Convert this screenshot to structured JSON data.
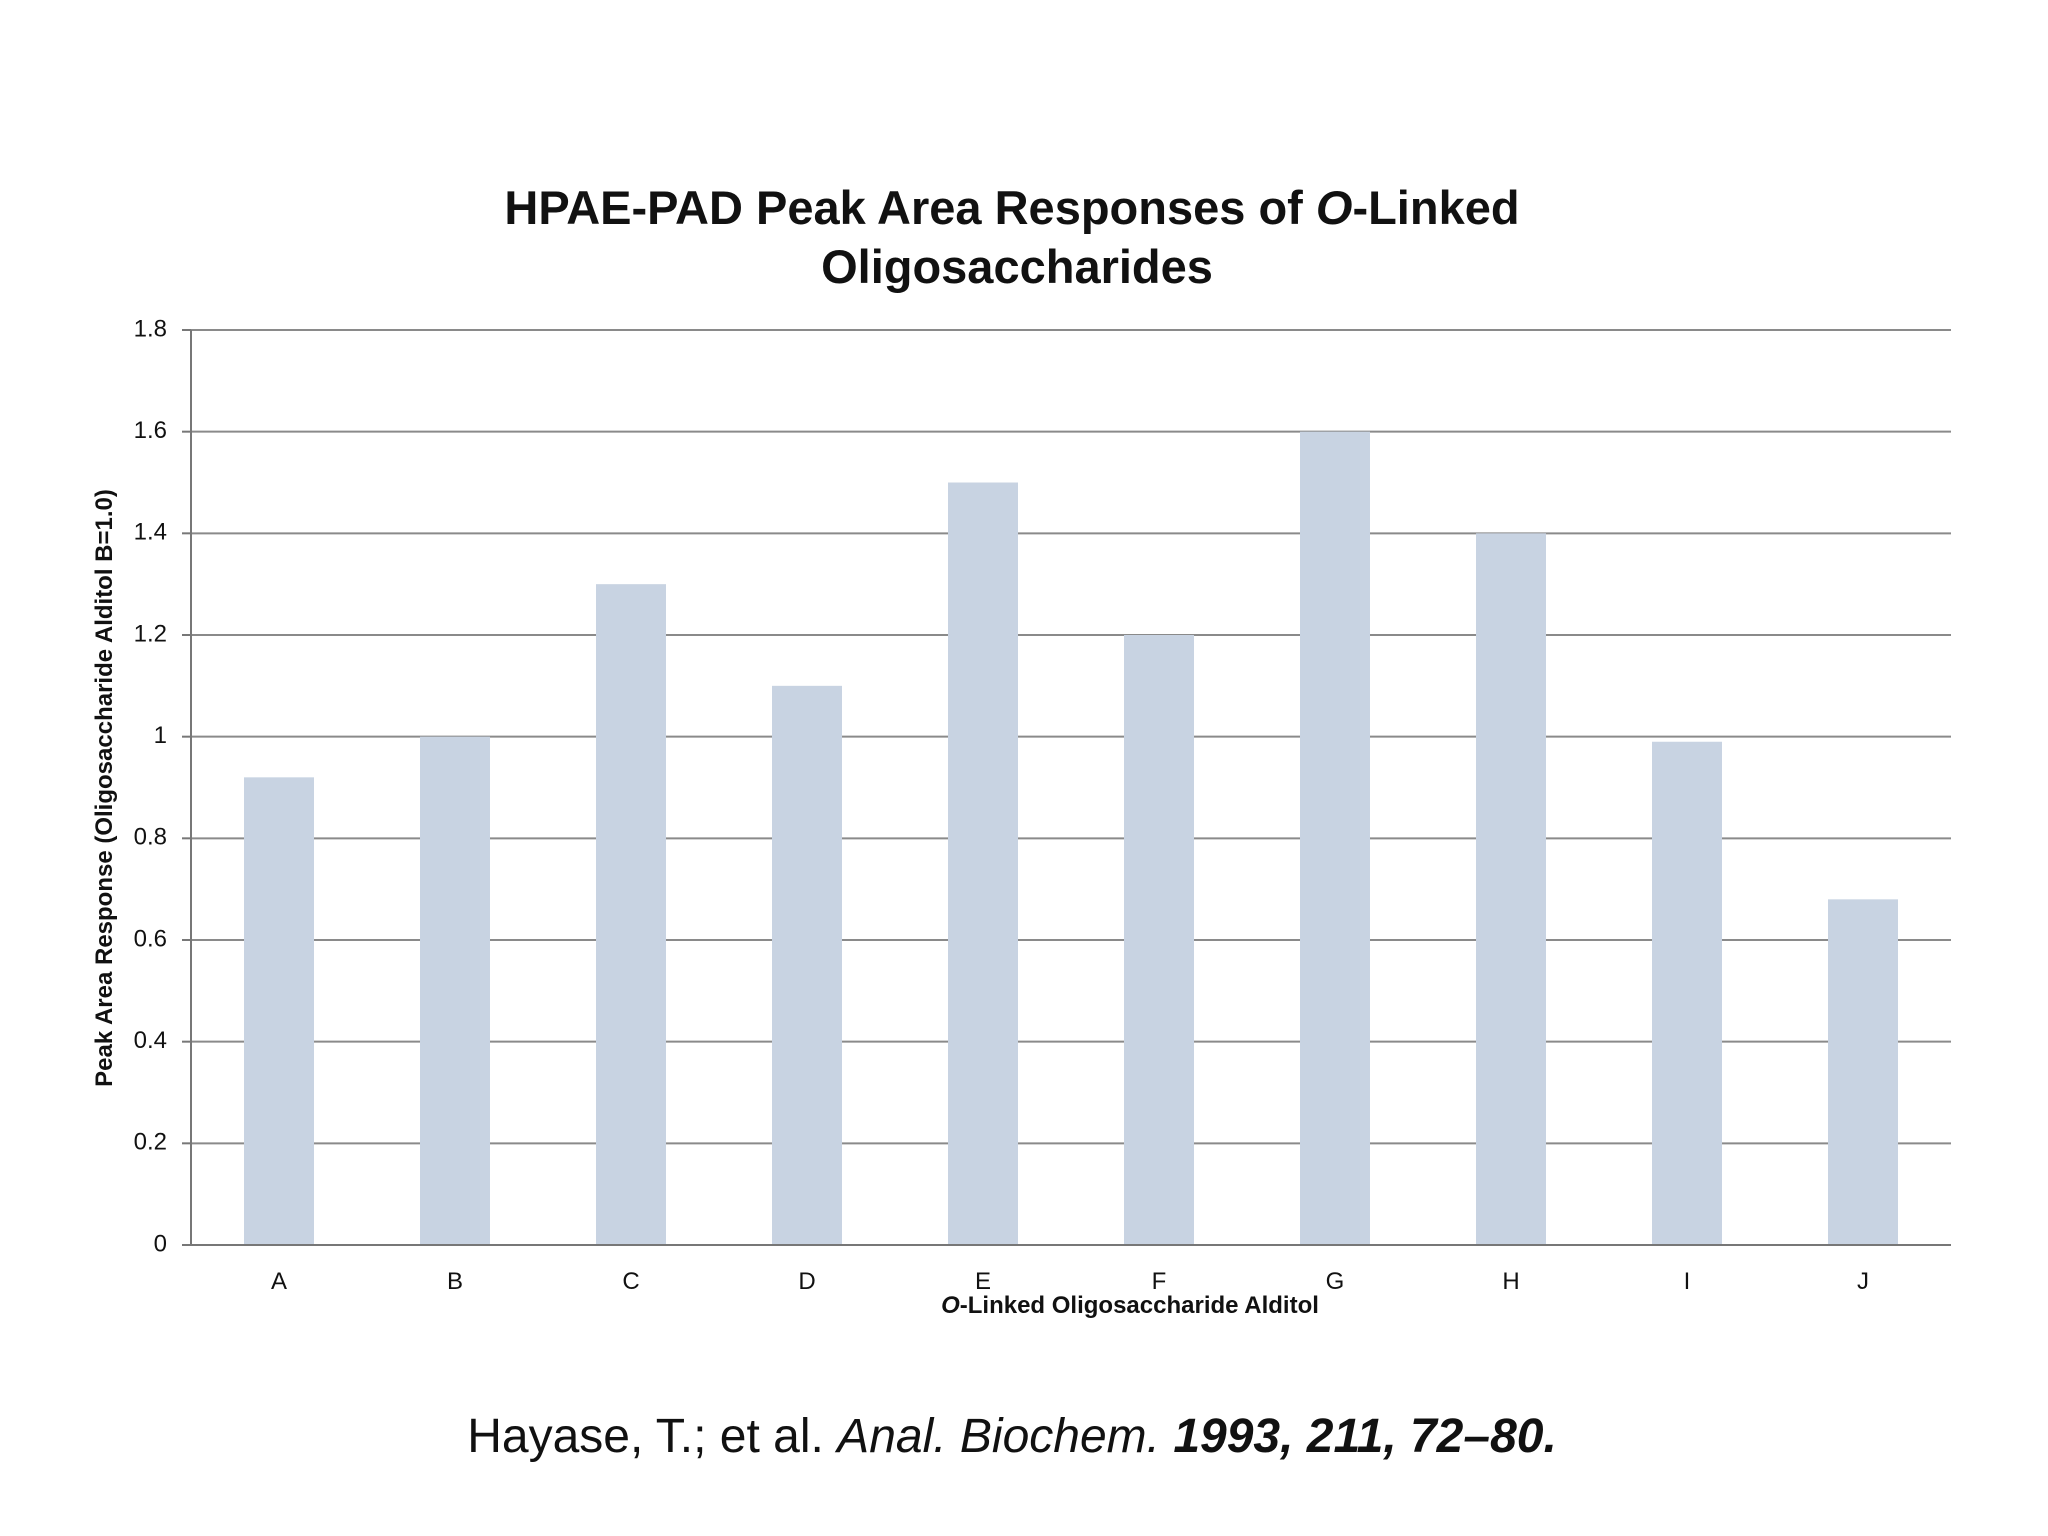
{
  "chart_data": {
    "type": "bar",
    "title": [
      "HPAE-PAD Peak Area Responses of ",
      "O",
      "-Linked",
      "Oligosaccharides"
    ],
    "x_label": [
      "O",
      "-Linked Oligosaccharide Alditol"
    ],
    "y_label": "Peak Area Response (Oligosaccharide Alditol B=1.0)",
    "categories": [
      "A",
      "B",
      "C",
      "D",
      "E",
      "F",
      "G",
      "H",
      "I",
      "J"
    ],
    "values": [
      0.92,
      1.0,
      1.3,
      1.1,
      1.5,
      1.2,
      1.6,
      1.4,
      0.99,
      0.68
    ],
    "color": "#c8d3e2",
    "ylim": [
      0,
      1.8
    ],
    "yticks": [
      0,
      0.2,
      0.4,
      0.6,
      0.8,
      1,
      1.2,
      1.4,
      1.6,
      1.8
    ],
    "grid": true
  },
  "citation": [
    "Hayase, T.; et al. ",
    "Anal. Biochem.",
    " 1993, 211, 72–80."
  ]
}
